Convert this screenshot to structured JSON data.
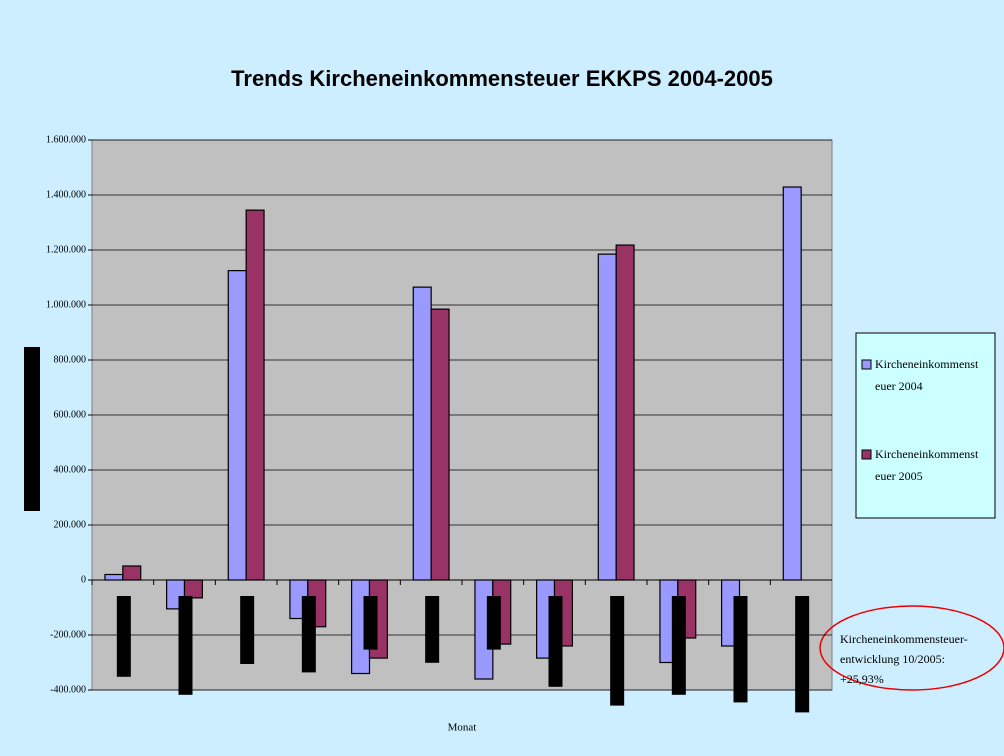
{
  "chart_data": {
    "type": "bar",
    "title": "Trends Kircheneinkommensteuer EKKPS 2004-2005",
    "x_label": "Monat",
    "categories": [
      null,
      null,
      null,
      null,
      null,
      null,
      null,
      null,
      null,
      null,
      null,
      null
    ],
    "series": [
      {
        "name": "Kircheneinkommensteuer 2004",
        "color": "#9999ff",
        "values": [
          20000,
          -105000,
          1125000,
          -140000,
          -340000,
          1065000,
          -360000,
          -284000,
          1185000,
          -300000,
          -240000,
          1429000
        ]
      },
      {
        "name": "Kircheneinkommensteuer 2005",
        "color": "#993366",
        "values": [
          51000,
          -65000,
          1345000,
          -170000,
          -284000,
          985000,
          -233000,
          -240000,
          1218000,
          -211000,
          null,
          null
        ]
      }
    ],
    "ylim": [
      -400000,
      1600000
    ],
    "yticks": [
      {
        "value": -400000,
        "label": "-400.000"
      },
      {
        "value": -200000,
        "label": "-200.000"
      },
      0,
      {
        "value": 200000,
        "label": "200.000"
      },
      {
        "value": 400000,
        "label": "400.000"
      },
      {
        "value": 600000,
        "label": "600.000"
      },
      {
        "value": 800000,
        "label": "800.000"
      },
      {
        "value": 1000000,
        "label": "1.000.000"
      },
      {
        "value": 1200000,
        "label": "1.200.000"
      },
      {
        "value": 1400000,
        "label": "1.400.000"
      },
      {
        "value": 1600000,
        "label": "1.600.000"
      }
    ],
    "grid": true,
    "annotation": [
      "Kircheneinkommensteuer-",
      "entwicklung 10/2005:",
      "+25,93%"
    ]
  }
}
